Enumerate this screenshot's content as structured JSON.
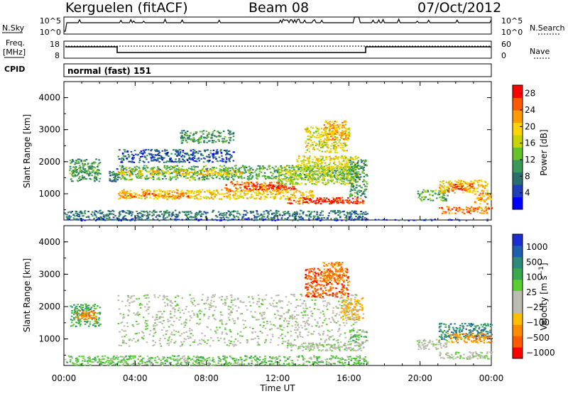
{
  "header": {
    "station": "Kerguelen (fitACF)",
    "beam": "Beam 08",
    "date": "07/Oct/2012"
  },
  "strip": {
    "nsky_label": "N.Sky",
    "nsearch_label": "N.Search",
    "freq_label_line1": "Freq.",
    "freq_label_line2": "[MHz]",
    "nave_label": "Nave",
    "cpid_label": "CPID",
    "cpid_value": "normal (fast) 151",
    "nsky_ticks": [
      "10^5",
      "10^0"
    ],
    "nsearch_ticks": [
      "10^5",
      "10^0"
    ],
    "freq_ticks": [
      "18",
      "8"
    ],
    "nave_ticks": [
      "60",
      "0"
    ]
  },
  "colors": {
    "power_scale": [
      "#0000ff",
      "#1e3fb8",
      "#2a6e6e",
      "#3a9a5a",
      "#66c22a",
      "#c8d400",
      "#ffd400",
      "#ff9a00",
      "#ff5a00",
      "#ff0000"
    ],
    "velocity_scale": [
      "#1a2fd0",
      "#1f5fb0",
      "#2e8a7a",
      "#3aa84e",
      "#5ad030",
      "#bcbcb0",
      "#bcbcb0",
      "#ffbf00",
      "#ff8c00",
      "#ff5a00",
      "#ff0000"
    ]
  },
  "chart_data": [
    {
      "type": "heatmap",
      "panel": "power",
      "xlabel": "Time UT",
      "ylabel": "Slant Range [km]",
      "xlim": [
        "00:00",
        "24:00"
      ],
      "xticks": [
        "00:00",
        "04:00",
        "08:00",
        "12:00",
        "16:00",
        "20:00",
        "00:00"
      ],
      "ylim": [
        180,
        4500
      ],
      "yticks": [
        1000,
        2000,
        3000,
        4000
      ],
      "colorbar": {
        "label": "Power [dB]",
        "ticks": [
          4,
          8,
          12,
          16,
          20,
          24,
          28
        ],
        "range": [
          0,
          30
        ]
      },
      "regions": [
        {
          "t0": 0.3,
          "t1": 2.0,
          "r0": 1400,
          "r1": 2100,
          "level": 10
        },
        {
          "t0": 0.2,
          "t1": 2.0,
          "r0": 1650,
          "r1": 1800,
          "level": 12
        },
        {
          "t0": 2.5,
          "t1": 3.0,
          "r0": 1400,
          "r1": 1800,
          "level": 8
        },
        {
          "t0": 3.0,
          "t1": 9.5,
          "r0": 2000,
          "r1": 2400,
          "level": 6
        },
        {
          "t0": 3.0,
          "t1": 16.5,
          "r0": 1450,
          "r1": 1900,
          "level": 12
        },
        {
          "t0": 3.0,
          "t1": 10.0,
          "r0": 1600,
          "r1": 1750,
          "level": 20
        },
        {
          "t0": 3.0,
          "t1": 14.0,
          "r0": 850,
          "r1": 1150,
          "level": 20
        },
        {
          "t0": 3.2,
          "t1": 7.0,
          "r0": 900,
          "r1": 1050,
          "level": 24
        },
        {
          "t0": 9.0,
          "t1": 12.5,
          "r0": 1100,
          "r1": 1400,
          "level": 24
        },
        {
          "t0": 10.0,
          "t1": 13.0,
          "r0": 1150,
          "r1": 1300,
          "level": 28
        },
        {
          "t0": 12.0,
          "t1": 16.5,
          "r0": 1300,
          "r1": 1900,
          "level": 16
        },
        {
          "t0": 13.0,
          "t1": 16.5,
          "r0": 1800,
          "r1": 2200,
          "level": 18
        },
        {
          "t0": 13.5,
          "t1": 16.0,
          "r0": 2300,
          "r1": 3100,
          "level": 18
        },
        {
          "t0": 14.5,
          "t1": 15.8,
          "r0": 2700,
          "r1": 3300,
          "level": 22
        },
        {
          "t0": 12.5,
          "t1": 16.8,
          "r0": 700,
          "r1": 900,
          "level": 26
        },
        {
          "t0": 13.5,
          "t1": 16.0,
          "r0": 730,
          "r1": 860,
          "level": 28
        },
        {
          "t0": 6.5,
          "t1": 9.5,
          "r0": 2600,
          "r1": 3000,
          "level": 10
        },
        {
          "t0": 16.0,
          "t1": 17.0,
          "r0": 900,
          "r1": 2100,
          "level": 10
        },
        {
          "t0": 19.8,
          "t1": 21.5,
          "r0": 800,
          "r1": 1150,
          "level": 12
        },
        {
          "t0": 21.0,
          "t1": 23.8,
          "r0": 1050,
          "r1": 1450,
          "level": 20
        },
        {
          "t0": 21.5,
          "t1": 23.0,
          "r0": 1100,
          "r1": 1350,
          "level": 26
        },
        {
          "t0": 23.0,
          "t1": 24.0,
          "r0": 700,
          "r1": 1050,
          "level": 22
        },
        {
          "t0": 21.0,
          "t1": 24.0,
          "r0": 400,
          "r1": 620,
          "level": 24
        },
        {
          "t0": 0.0,
          "t1": 17.0,
          "r0": 200,
          "r1": 500,
          "level": 8
        },
        {
          "t0": 0.0,
          "t1": 24.0,
          "r0": 180,
          "r1": 220,
          "level": 4
        }
      ]
    },
    {
      "type": "heatmap",
      "panel": "velocity",
      "xlabel": "Time UT",
      "ylabel": "Slant Range [km]",
      "xlim": [
        "00:00",
        "24:00"
      ],
      "xticks": [
        "00:00",
        "04:00",
        "08:00",
        "12:00",
        "16:00",
        "20:00",
        "00:00"
      ],
      "ylim": [
        180,
        4500
      ],
      "yticks": [
        1000,
        2000,
        3000,
        4000
      ],
      "colorbar": {
        "label": "Velocity [m s^-1]",
        "ticks": [
          "1000",
          "500",
          "100",
          "25",
          "−25",
          "−100",
          "−500",
          "−1000"
        ]
      },
      "regions": [
        {
          "t0": 0.3,
          "t1": 2.0,
          "r0": 1400,
          "r1": 2100,
          "level": 3
        },
        {
          "t0": 0.6,
          "t1": 1.8,
          "r0": 1550,
          "r1": 1900,
          "level": 8
        },
        {
          "t0": 3.0,
          "t1": 16.5,
          "r0": 800,
          "r1": 2400,
          "level": 5
        },
        {
          "t0": 12.5,
          "t1": 16.8,
          "r0": 650,
          "r1": 900,
          "level": 5
        },
        {
          "t0": 13.5,
          "t1": 16.0,
          "r0": 2300,
          "r1": 3200,
          "level": 9
        },
        {
          "t0": 14.5,
          "t1": 15.8,
          "r0": 2800,
          "r1": 3400,
          "level": 8
        },
        {
          "t0": 15.5,
          "t1": 16.8,
          "r0": 1600,
          "r1": 2300,
          "level": 7
        },
        {
          "t0": 16.0,
          "t1": 17.0,
          "r0": 900,
          "r1": 1300,
          "level": 4
        },
        {
          "t0": 19.8,
          "t1": 21.5,
          "r0": 700,
          "r1": 1000,
          "level": 5
        },
        {
          "t0": 21.0,
          "t1": 24.0,
          "r0": 1000,
          "r1": 1500,
          "level": 2
        },
        {
          "t0": 21.5,
          "t1": 24.0,
          "r0": 900,
          "r1": 1200,
          "level": 8
        },
        {
          "t0": 21.0,
          "t1": 24.0,
          "r0": 400,
          "r1": 620,
          "level": 5
        },
        {
          "t0": 0.0,
          "t1": 17.0,
          "r0": 200,
          "r1": 500,
          "level": 4
        }
      ]
    }
  ]
}
